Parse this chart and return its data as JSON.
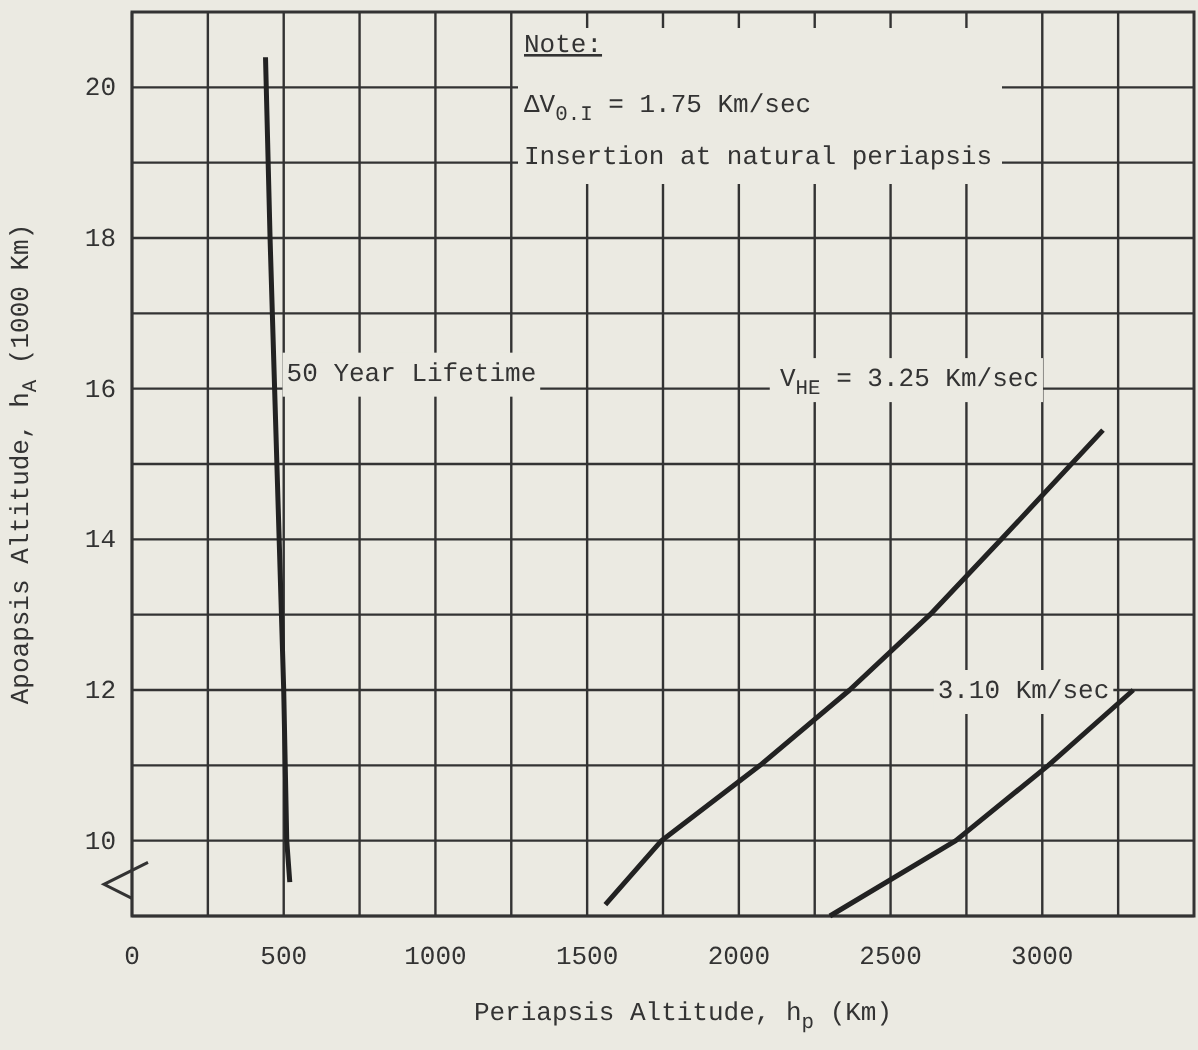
{
  "chart_data": {
    "type": "line",
    "xlabel": "Periapsis Altitude, h$_{p}$ (Km)",
    "ylabel": "Apoapsis Altitude, h$_{A}$ (1000 Km)",
    "xlim": [
      0,
      3500
    ],
    "ylim": [
      9,
      21
    ],
    "xticks": [
      0,
      {
        "value": 250,
        "label": null
      },
      500,
      {
        "value": 750,
        "label": null
      },
      1000,
      {
        "value": 1250,
        "label": null
      },
      1500,
      {
        "value": 1750,
        "label": null
      },
      2000,
      {
        "value": 2250,
        "label": null
      },
      2500,
      {
        "value": 2750,
        "label": null
      },
      3000,
      {
        "value": 3250,
        "label": null
      }
    ],
    "yticks": [
      {
        "value": 9,
        "label": null
      },
      10,
      {
        "value": 11,
        "label": null
      },
      12,
      {
        "value": 13,
        "label": null
      },
      14,
      {
        "value": 15,
        "label": null
      },
      16,
      {
        "value": 17,
        "label": null
      },
      18,
      {
        "value": 19,
        "label": null
      },
      20
    ],
    "grid": true,
    "marker": "none",
    "line_style": "solid",
    "series": [
      {
        "name": "50 Year Lifetime",
        "color": "#222222",
        "x": [
          440,
          455,
          470,
          485,
          500,
          510,
          520
        ],
        "values": [
          20.4,
          18,
          16,
          14,
          12,
          10,
          9.45
        ]
      },
      {
        "name": "V$_{HE}$ = 3.25 Km/sec",
        "color": "#222222",
        "x": [
          1560,
          1745,
          2070,
          2365,
          2630,
          2865,
          3200
        ],
        "values": [
          9.15,
          10,
          11,
          12,
          13,
          14,
          15.45
        ]
      },
      {
        "name": "3.10 Km/sec",
        "color": "#222222",
        "x": [
          2300,
          2715,
          3020,
          3300
        ],
        "values": [
          9,
          10,
          11,
          12
        ]
      }
    ],
    "annotations": [
      "Note:",
      "ΔV$_{0.I}$ = 1.75 Km/sec",
      "Insertion at natural periapsis"
    ]
  }
}
